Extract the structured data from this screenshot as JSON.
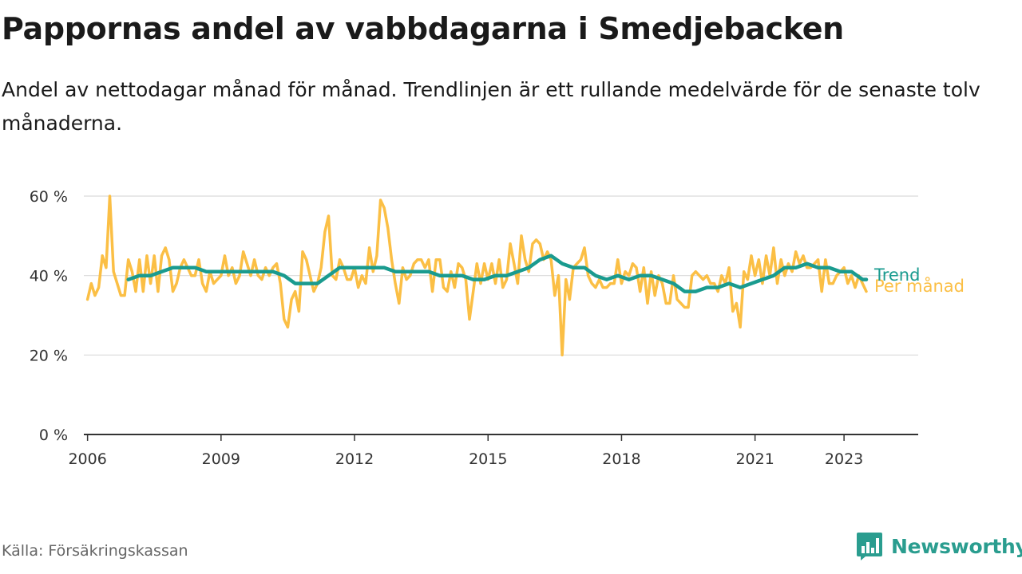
{
  "title": "Pappornas andel av vabbdagarna i Smedjebacken",
  "subtitle": "Andel av nettodagar månad för månad. Trendlinjen är ett rullande medelvärde för de senaste tolv månaderna.",
  "source": "Källa: Försäkringskassan",
  "brand": {
    "name": "Newsworthy",
    "icon": "newsworthy-logo-icon",
    "color": "#2a9d8f"
  },
  "chart_data": {
    "type": "line",
    "title": "Pappornas andel av vabbdagarna i Smedjebacken",
    "xlabel": "",
    "ylabel": "",
    "x_range": [
      "2005-12",
      "2024-09"
    ],
    "ylim": [
      0,
      60
    ],
    "y_ticks": [
      0,
      20,
      40,
      60
    ],
    "y_tick_labels": [
      "0 %",
      "20 %",
      "40 %",
      "60 %"
    ],
    "x_ticks": [
      "2006-01",
      "2009-01",
      "2012-01",
      "2015-01",
      "2018-01",
      "2021-01",
      "2023-01"
    ],
    "x_tick_labels": [
      "2006",
      "2009",
      "2012",
      "2015",
      "2018",
      "2021",
      "2023"
    ],
    "grid": "horizontal",
    "legend": "direct labels at line ends",
    "series": [
      {
        "name": "Per månad",
        "color": "#fbbf45",
        "points": [
          [
            "2006-01",
            34
          ],
          [
            "2006-02",
            38
          ],
          [
            "2006-03",
            35
          ],
          [
            "2006-04",
            37
          ],
          [
            "2006-05",
            45
          ],
          [
            "2006-06",
            42
          ],
          [
            "2006-07",
            60
          ],
          [
            "2006-08",
            41
          ],
          [
            "2006-09",
            38
          ],
          [
            "2006-10",
            35
          ],
          [
            "2006-11",
            35
          ],
          [
            "2006-12",
            44
          ],
          [
            "2007-01",
            41
          ],
          [
            "2007-02",
            36
          ],
          [
            "2007-03",
            44
          ],
          [
            "2007-04",
            36
          ],
          [
            "2007-05",
            45
          ],
          [
            "2007-06",
            38
          ],
          [
            "2007-07",
            45
          ],
          [
            "2007-08",
            36
          ],
          [
            "2007-09",
            45
          ],
          [
            "2007-10",
            47
          ],
          [
            "2007-11",
            44
          ],
          [
            "2007-12",
            36
          ],
          [
            "2008-01",
            38
          ],
          [
            "2008-02",
            42
          ],
          [
            "2008-03",
            44
          ],
          [
            "2008-04",
            42
          ],
          [
            "2008-05",
            40
          ],
          [
            "2008-06",
            40
          ],
          [
            "2008-07",
            44
          ],
          [
            "2008-08",
            38
          ],
          [
            "2008-09",
            36
          ],
          [
            "2008-10",
            41
          ],
          [
            "2008-11",
            38
          ],
          [
            "2008-12",
            39
          ],
          [
            "2009-01",
            40
          ],
          [
            "2009-02",
            45
          ],
          [
            "2009-03",
            40
          ],
          [
            "2009-04",
            42
          ],
          [
            "2009-05",
            38
          ],
          [
            "2009-06",
            40
          ],
          [
            "2009-07",
            46
          ],
          [
            "2009-08",
            43
          ],
          [
            "2009-09",
            40
          ],
          [
            "2009-10",
            44
          ],
          [
            "2009-11",
            40
          ],
          [
            "2009-12",
            39
          ],
          [
            "2010-01",
            42
          ],
          [
            "2010-02",
            40
          ],
          [
            "2010-03",
            42
          ],
          [
            "2010-04",
            43
          ],
          [
            "2010-05",
            38
          ],
          [
            "2010-06",
            29
          ],
          [
            "2010-07",
            27
          ],
          [
            "2010-08",
            34
          ],
          [
            "2010-09",
            36
          ],
          [
            "2010-10",
            31
          ],
          [
            "2010-11",
            46
          ],
          [
            "2010-12",
            44
          ],
          [
            "2011-01",
            40
          ],
          [
            "2011-02",
            36
          ],
          [
            "2011-03",
            38
          ],
          [
            "2011-04",
            42
          ],
          [
            "2011-05",
            51
          ],
          [
            "2011-06",
            55
          ],
          [
            "2011-07",
            40
          ],
          [
            "2011-08",
            39
          ],
          [
            "2011-09",
            44
          ],
          [
            "2011-10",
            42
          ],
          [
            "2011-11",
            39
          ],
          [
            "2011-12",
            39
          ],
          [
            "2012-01",
            42
          ],
          [
            "2012-02",
            37
          ],
          [
            "2012-03",
            40
          ],
          [
            "2012-04",
            38
          ],
          [
            "2012-05",
            47
          ],
          [
            "2012-06",
            41
          ],
          [
            "2012-07",
            45
          ],
          [
            "2012-08",
            59
          ],
          [
            "2012-09",
            57
          ],
          [
            "2012-10",
            52
          ],
          [
            "2012-11",
            44
          ],
          [
            "2012-12",
            38
          ],
          [
            "2013-01",
            33
          ],
          [
            "2013-02",
            42
          ],
          [
            "2013-03",
            39
          ],
          [
            "2013-04",
            40
          ],
          [
            "2013-05",
            43
          ],
          [
            "2013-06",
            44
          ],
          [
            "2013-07",
            44
          ],
          [
            "2013-08",
            42
          ],
          [
            "2013-09",
            44
          ],
          [
            "2013-10",
            36
          ],
          [
            "2013-11",
            44
          ],
          [
            "2013-12",
            44
          ],
          [
            "2014-01",
            37
          ],
          [
            "2014-02",
            36
          ],
          [
            "2014-03",
            41
          ],
          [
            "2014-04",
            37
          ],
          [
            "2014-05",
            43
          ],
          [
            "2014-06",
            42
          ],
          [
            "2014-07",
            39
          ],
          [
            "2014-08",
            29
          ],
          [
            "2014-09",
            36
          ],
          [
            "2014-10",
            43
          ],
          [
            "2014-11",
            38
          ],
          [
            "2014-12",
            43
          ],
          [
            "2015-01",
            39
          ],
          [
            "2015-02",
            43
          ],
          [
            "2015-03",
            38
          ],
          [
            "2015-04",
            44
          ],
          [
            "2015-05",
            37
          ],
          [
            "2015-06",
            39
          ],
          [
            "2015-07",
            48
          ],
          [
            "2015-08",
            43
          ],
          [
            "2015-09",
            38
          ],
          [
            "2015-10",
            50
          ],
          [
            "2015-11",
            44
          ],
          [
            "2015-12",
            41
          ],
          [
            "2016-01",
            48
          ],
          [
            "2016-02",
            49
          ],
          [
            "2016-03",
            48
          ],
          [
            "2016-04",
            44
          ],
          [
            "2016-05",
            46
          ],
          [
            "2016-06",
            44
          ],
          [
            "2016-07",
            35
          ],
          [
            "2016-08",
            40
          ],
          [
            "2016-09",
            20
          ],
          [
            "2016-10",
            39
          ],
          [
            "2016-11",
            34
          ],
          [
            "2016-12",
            42
          ],
          [
            "2017-01",
            43
          ],
          [
            "2017-02",
            44
          ],
          [
            "2017-03",
            47
          ],
          [
            "2017-04",
            40
          ],
          [
            "2017-05",
            38
          ],
          [
            "2017-06",
            37
          ],
          [
            "2017-07",
            39
          ],
          [
            "2017-08",
            37
          ],
          [
            "2017-09",
            37
          ],
          [
            "2017-10",
            38
          ],
          [
            "2017-11",
            38
          ],
          [
            "2017-12",
            44
          ],
          [
            "2018-01",
            38
          ],
          [
            "2018-02",
            41
          ],
          [
            "2018-03",
            40
          ],
          [
            "2018-04",
            43
          ],
          [
            "2018-05",
            42
          ],
          [
            "2018-06",
            36
          ],
          [
            "2018-07",
            42
          ],
          [
            "2018-08",
            33
          ],
          [
            "2018-09",
            41
          ],
          [
            "2018-10",
            35
          ],
          [
            "2018-11",
            40
          ],
          [
            "2018-12",
            38
          ],
          [
            "2019-01",
            33
          ],
          [
            "2019-02",
            33
          ],
          [
            "2019-03",
            40
          ],
          [
            "2019-04",
            34
          ],
          [
            "2019-05",
            33
          ],
          [
            "2019-06",
            32
          ],
          [
            "2019-07",
            32
          ],
          [
            "2019-08",
            40
          ],
          [
            "2019-09",
            41
          ],
          [
            "2019-10",
            40
          ],
          [
            "2019-11",
            39
          ],
          [
            "2019-12",
            40
          ],
          [
            "2020-01",
            38
          ],
          [
            "2020-02",
            38
          ],
          [
            "2020-03",
            36
          ],
          [
            "2020-04",
            40
          ],
          [
            "2020-05",
            38
          ],
          [
            "2020-06",
            42
          ],
          [
            "2020-07",
            31
          ],
          [
            "2020-08",
            33
          ],
          [
            "2020-09",
            27
          ],
          [
            "2020-10",
            41
          ],
          [
            "2020-11",
            39
          ],
          [
            "2020-12",
            45
          ],
          [
            "2021-01",
            40
          ],
          [
            "2021-02",
            44
          ],
          [
            "2021-03",
            38
          ],
          [
            "2021-04",
            45
          ],
          [
            "2021-05",
            40
          ],
          [
            "2021-06",
            47
          ],
          [
            "2021-07",
            38
          ],
          [
            "2021-08",
            44
          ],
          [
            "2021-09",
            40
          ],
          [
            "2021-10",
            43
          ],
          [
            "2021-11",
            41
          ],
          [
            "2021-12",
            46
          ],
          [
            "2022-01",
            43
          ],
          [
            "2022-02",
            45
          ],
          [
            "2022-03",
            42
          ],
          [
            "2022-04",
            42
          ],
          [
            "2022-05",
            43
          ],
          [
            "2022-06",
            44
          ],
          [
            "2022-07",
            36
          ],
          [
            "2022-08",
            44
          ],
          [
            "2022-09",
            38
          ],
          [
            "2022-10",
            38
          ],
          [
            "2022-11",
            40
          ],
          [
            "2022-12",
            41
          ],
          [
            "2023-01",
            42
          ],
          [
            "2023-02",
            38
          ],
          [
            "2023-03",
            40
          ],
          [
            "2023-04",
            37
          ],
          [
            "2023-05",
            40
          ],
          [
            "2023-06",
            38
          ],
          [
            "2023-07",
            36
          ]
        ]
      },
      {
        "name": "Trend",
        "color": "#1a9b8f",
        "points": [
          [
            "2006-12",
            39
          ],
          [
            "2007-03",
            40
          ],
          [
            "2007-06",
            40
          ],
          [
            "2007-09",
            41
          ],
          [
            "2007-12",
            42
          ],
          [
            "2008-03",
            42
          ],
          [
            "2008-06",
            42
          ],
          [
            "2008-09",
            41
          ],
          [
            "2008-12",
            41
          ],
          [
            "2009-03",
            41
          ],
          [
            "2009-06",
            41
          ],
          [
            "2009-09",
            41
          ],
          [
            "2009-12",
            41
          ],
          [
            "2010-03",
            41
          ],
          [
            "2010-06",
            40
          ],
          [
            "2010-09",
            38
          ],
          [
            "2010-12",
            38
          ],
          [
            "2011-03",
            38
          ],
          [
            "2011-06",
            40
          ],
          [
            "2011-09",
            42
          ],
          [
            "2011-12",
            42
          ],
          [
            "2012-03",
            42
          ],
          [
            "2012-06",
            42
          ],
          [
            "2012-09",
            42
          ],
          [
            "2012-12",
            41
          ],
          [
            "2013-03",
            41
          ],
          [
            "2013-06",
            41
          ],
          [
            "2013-09",
            41
          ],
          [
            "2013-12",
            40
          ],
          [
            "2014-03",
            40
          ],
          [
            "2014-06",
            40
          ],
          [
            "2014-09",
            39
          ],
          [
            "2014-12",
            39
          ],
          [
            "2015-03",
            40
          ],
          [
            "2015-06",
            40
          ],
          [
            "2015-09",
            41
          ],
          [
            "2015-12",
            42
          ],
          [
            "2016-03",
            44
          ],
          [
            "2016-06",
            45
          ],
          [
            "2016-09",
            43
          ],
          [
            "2016-12",
            42
          ],
          [
            "2017-03",
            42
          ],
          [
            "2017-06",
            40
          ],
          [
            "2017-09",
            39
          ],
          [
            "2017-12",
            40
          ],
          [
            "2018-03",
            39
          ],
          [
            "2018-06",
            40
          ],
          [
            "2018-09",
            40
          ],
          [
            "2018-12",
            39
          ],
          [
            "2019-03",
            38
          ],
          [
            "2019-06",
            36
          ],
          [
            "2019-09",
            36
          ],
          [
            "2019-12",
            37
          ],
          [
            "2020-03",
            37
          ],
          [
            "2020-06",
            38
          ],
          [
            "2020-09",
            37
          ],
          [
            "2020-12",
            38
          ],
          [
            "2021-03",
            39
          ],
          [
            "2021-06",
            40
          ],
          [
            "2021-09",
            42
          ],
          [
            "2021-12",
            42
          ],
          [
            "2022-03",
            43
          ],
          [
            "2022-06",
            42
          ],
          [
            "2022-09",
            42
          ],
          [
            "2022-12",
            41
          ],
          [
            "2023-03",
            41
          ],
          [
            "2023-06",
            39
          ],
          [
            "2023-07",
            39
          ]
        ]
      }
    ]
  }
}
